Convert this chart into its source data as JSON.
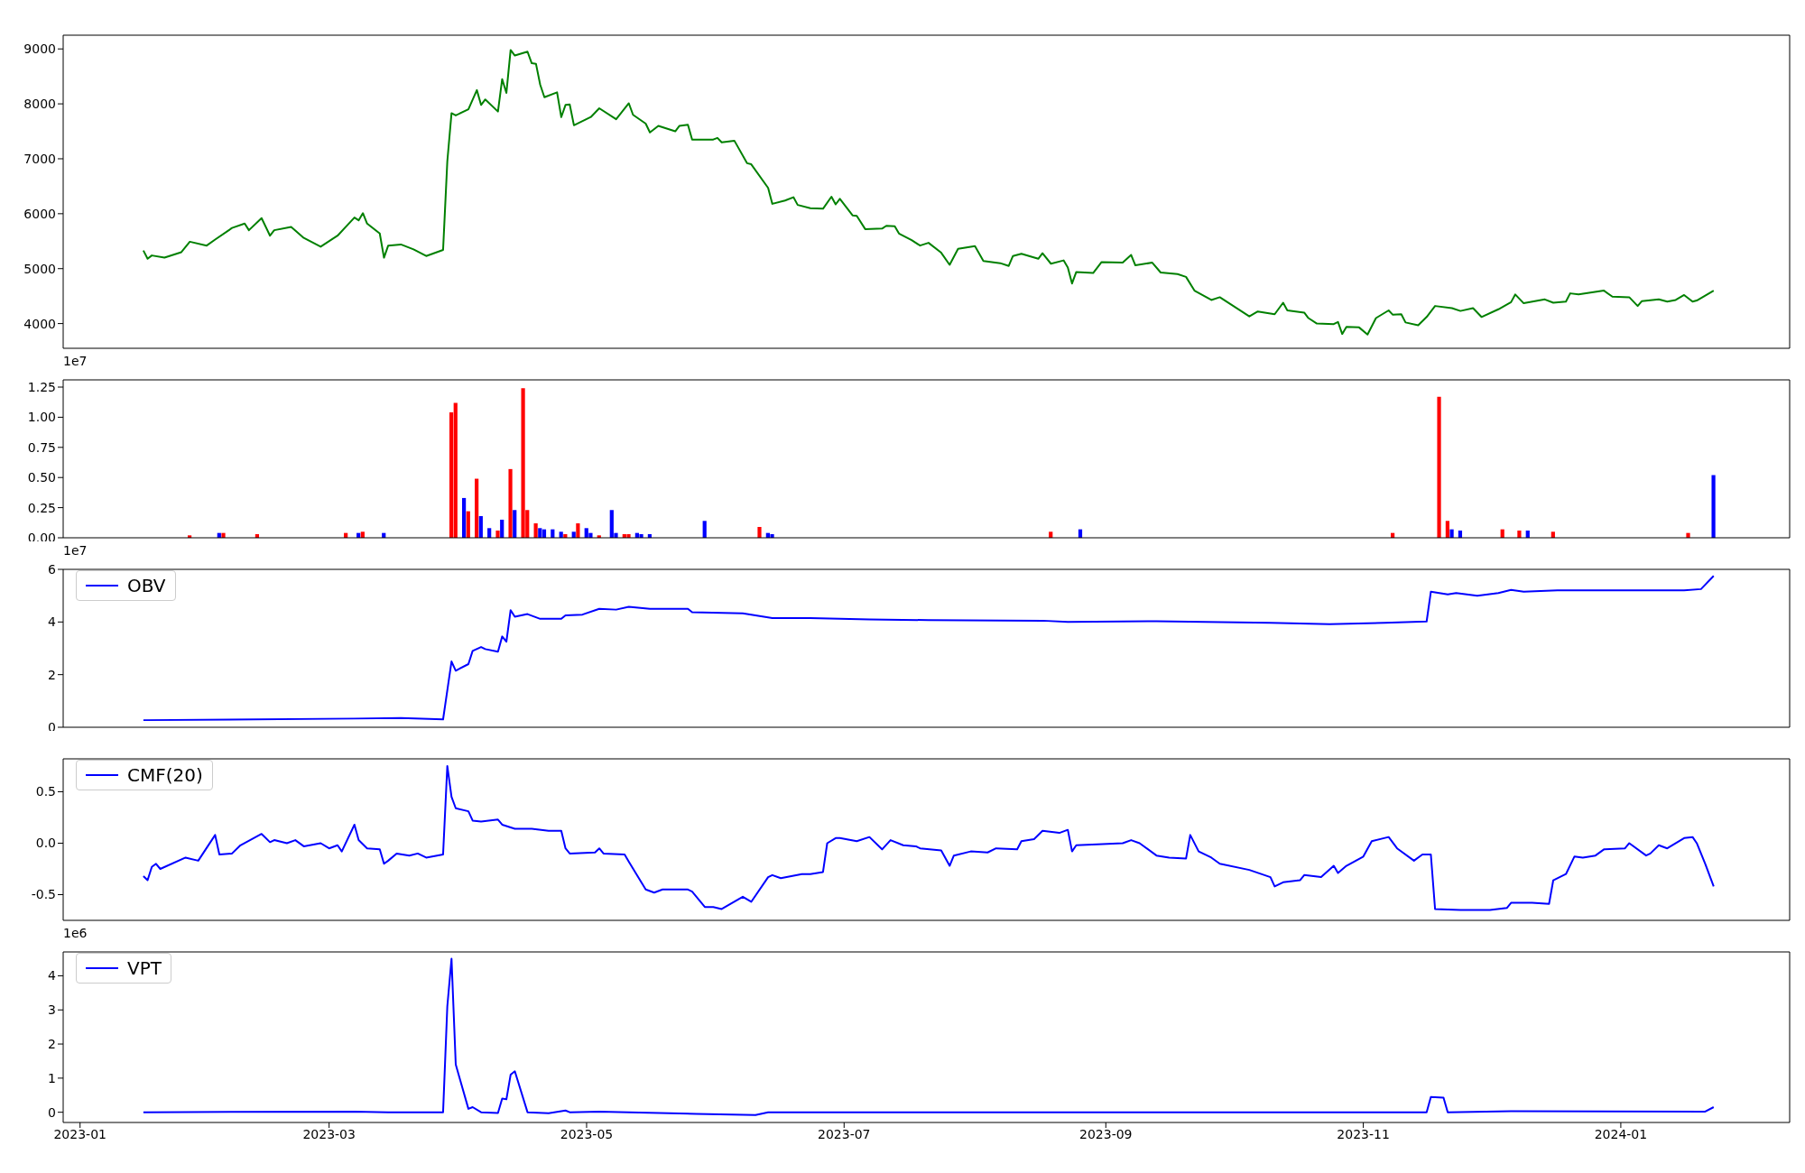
{
  "chart_data": [
    {
      "type": "line",
      "x": [
        "2023-01-16",
        "2023-01-17",
        "2023-01-18",
        "2023-01-21",
        "2023-01-25",
        "2023-01-27",
        "2023-01-31",
        "2023-02-02",
        "2023-02-06",
        "2023-02-09",
        "2023-02-10",
        "2023-02-13",
        "2023-02-15",
        "2023-02-16",
        "2023-02-20",
        "2023-02-23",
        "2023-02-27",
        "2023-03-03",
        "2023-03-07",
        "2023-03-08",
        "2023-03-09",
        "2023-03-10",
        "2023-03-13",
        "2023-03-14",
        "2023-03-15",
        "2023-03-18",
        "2023-03-21",
        "2023-03-24",
        "2023-03-28",
        "2023-03-29",
        "2023-03-30",
        "2023-03-31",
        "2023-04-03",
        "2023-04-05",
        "2023-04-06",
        "2023-04-07",
        "2023-04-10",
        "2023-04-11",
        "2023-04-12",
        "2023-04-13",
        "2023-04-14",
        "2023-04-17",
        "2023-04-18",
        "2023-04-19",
        "2023-04-20",
        "2023-04-21",
        "2023-04-24",
        "2023-04-25",
        "2023-04-26",
        "2023-04-27",
        "2023-04-28",
        "2023-05-02",
        "2023-05-04",
        "2023-05-08",
        "2023-05-11",
        "2023-05-12",
        "2023-05-15",
        "2023-05-16",
        "2023-05-18",
        "2023-05-22",
        "2023-05-23",
        "2023-05-25",
        "2023-05-26",
        "2023-05-31",
        "2023-06-01",
        "2023-06-02",
        "2023-06-05",
        "2023-06-08",
        "2023-06-09",
        "2023-06-13",
        "2023-06-14",
        "2023-06-17",
        "2023-06-19",
        "2023-06-20",
        "2023-06-23",
        "2023-06-26",
        "2023-06-28",
        "2023-06-29",
        "2023-06-30",
        "2023-07-03",
        "2023-07-04",
        "2023-07-06",
        "2023-07-10",
        "2023-07-11",
        "2023-07-13",
        "2023-07-14",
        "2023-07-17",
        "2023-07-19",
        "2023-07-21",
        "2023-07-24",
        "2023-07-26",
        "2023-07-28",
        "2023-08-01",
        "2023-08-03",
        "2023-08-07",
        "2023-08-09",
        "2023-08-10",
        "2023-08-12",
        "2023-08-16",
        "2023-08-17",
        "2023-08-19",
        "2023-08-22",
        "2023-08-23",
        "2023-08-24",
        "2023-08-25",
        "2023-08-29",
        "2023-08-31",
        "2023-09-05",
        "2023-09-07",
        "2023-09-08",
        "2023-09-12",
        "2023-09-14",
        "2023-09-18",
        "2023-09-20",
        "2023-09-22",
        "2023-09-26",
        "2023-09-28",
        "2023-10-05",
        "2023-10-07",
        "2023-10-11",
        "2023-10-13",
        "2023-10-14",
        "2023-10-18",
        "2023-10-19",
        "2023-10-21",
        "2023-10-25",
        "2023-10-26",
        "2023-10-27",
        "2023-10-28",
        "2023-10-31",
        "2023-11-02",
        "2023-11-04",
        "2023-11-07",
        "2023-11-08",
        "2023-11-10",
        "2023-11-11",
        "2023-11-14",
        "2023-11-16",
        "2023-11-18",
        "2023-11-22",
        "2023-11-24",
        "2023-11-27",
        "2023-11-29",
        "2023-12-03",
        "2023-12-06",
        "2023-12-07",
        "2023-12-09",
        "2023-12-14",
        "2023-12-16",
        "2023-12-19",
        "2023-12-20",
        "2023-12-22",
        "2023-12-28",
        "2023-12-30",
        "2024-01-03",
        "2024-01-05",
        "2024-01-06",
        "2024-01-10",
        "2024-01-12",
        "2024-01-14",
        "2024-01-16",
        "2024-01-18",
        "2024-01-19",
        "2024-01-23"
      ],
      "series": [
        {
          "color": "#008000",
          "values": [
            5330,
            5180,
            5240,
            5200,
            5300,
            5490,
            5420,
            5530,
            5740,
            5820,
            5700,
            5920,
            5600,
            5700,
            5760,
            5560,
            5400,
            5600,
            5930,
            5880,
            6010,
            5820,
            5640,
            5200,
            5420,
            5440,
            5350,
            5230,
            5340,
            6950,
            7830,
            7790,
            7900,
            8250,
            7980,
            8080,
            7860,
            8450,
            8200,
            8980,
            8880,
            8950,
            8740,
            8730,
            8350,
            8120,
            8210,
            7760,
            7980,
            7990,
            7610,
            7760,
            7920,
            7720,
            8010,
            7800,
            7640,
            7480,
            7600,
            7500,
            7600,
            7620,
            7350,
            7350,
            7380,
            7300,
            7330,
            6920,
            6900,
            6470,
            6180,
            6240,
            6300,
            6160,
            6100,
            6090,
            6310,
            6170,
            6270,
            5970,
            5960,
            5720,
            5730,
            5780,
            5770,
            5640,
            5520,
            5420,
            5470,
            5290,
            5070,
            5360,
            5410,
            5140,
            5100,
            5050,
            5230,
            5270,
            5180,
            5280,
            5090,
            5150,
            5020,
            4730,
            4940,
            4920,
            5120,
            5110,
            5250,
            5060,
            5110,
            4930,
            4900,
            4850,
            4600,
            4430,
            4480,
            4130,
            4220,
            4170,
            4380,
            4240,
            4200,
            4100,
            4000,
            3990,
            4030,
            3810,
            3940,
            3930,
            3800,
            4100,
            4240,
            4160,
            4170,
            4020,
            3970,
            4120,
            4320,
            4280,
            4230,
            4280,
            4120,
            4260,
            4390,
            4530,
            4370,
            4440,
            4380,
            4400,
            4550,
            4530,
            4600,
            4490,
            4480,
            4320,
            4410,
            4440,
            4400,
            4430,
            4520,
            4400,
            4420,
            4600
          ]
        }
      ],
      "xlim": [
        "2022-12-28",
        "2024-02-10"
      ],
      "xticks": [
        "2023-01",
        "2023-03",
        "2023-05",
        "2023-07",
        "2023-09",
        "2023-11",
        "2024-01"
      ],
      "ylim": [
        3550,
        9250
      ],
      "yticks": [
        4000,
        5000,
        6000,
        7000,
        8000,
        9000
      ],
      "tick_labels": "y"
    },
    {
      "type": "bar",
      "annotations": [
        "1e7"
      ],
      "x": [
        "2023-01-27",
        "2023-02-03",
        "2023-02-04",
        "2023-02-12",
        "2023-03-05",
        "2023-03-08",
        "2023-03-09",
        "2023-03-14",
        "2023-03-30",
        "2023-03-31",
        "2023-04-02",
        "2023-04-03",
        "2023-04-05",
        "2023-04-06",
        "2023-04-08",
        "2023-04-10",
        "2023-04-11",
        "2023-04-13",
        "2023-04-14",
        "2023-04-16",
        "2023-04-17",
        "2023-04-19",
        "2023-04-20",
        "2023-04-21",
        "2023-04-23",
        "2023-04-25",
        "2023-04-26",
        "2023-04-28",
        "2023-04-29",
        "2023-05-01",
        "2023-05-02",
        "2023-05-04",
        "2023-05-07",
        "2023-05-08",
        "2023-05-10",
        "2023-05-11",
        "2023-05-13",
        "2023-05-14",
        "2023-05-16",
        "2023-05-29",
        "2023-06-11",
        "2023-06-13",
        "2023-06-14",
        "2023-08-19",
        "2023-08-26",
        "2023-11-08",
        "2023-11-19",
        "2023-11-21",
        "2023-11-22",
        "2023-11-24",
        "2023-12-04",
        "2023-12-08",
        "2023-12-10",
        "2023-12-16",
        "2024-01-17",
        "2024-01-23"
      ],
      "values": [
        0.02,
        0.04,
        0.04,
        0.03,
        0.04,
        0.04,
        0.05,
        0.04,
        1.04,
        1.12,
        0.33,
        0.22,
        0.49,
        0.18,
        0.08,
        0.06,
        0.15,
        0.57,
        0.23,
        1.24,
        0.23,
        0.12,
        0.08,
        0.07,
        0.07,
        0.05,
        0.03,
        0.05,
        0.12,
        0.08,
        0.04,
        0.02,
        0.23,
        0.04,
        0.03,
        0.03,
        0.04,
        0.03,
        0.03,
        0.14,
        0.09,
        0.04,
        0.03,
        0.05,
        0.07,
        0.04,
        1.17,
        0.14,
        0.07,
        0.06,
        0.07,
        0.06,
        0.06,
        0.05,
        0.04,
        0.52
      ],
      "colors": [
        "#ff0000",
        "#0000ff",
        "#ff0000",
        "#ff0000",
        "#ff0000",
        "#0000ff",
        "#ff0000",
        "#0000ff",
        "#ff0000",
        "#ff0000",
        "#0000ff",
        "#ff0000",
        "#ff0000",
        "#0000ff",
        "#0000ff",
        "#ff0000",
        "#0000ff",
        "#ff0000",
        "#0000ff",
        "#ff0000",
        "#ff0000",
        "#ff0000",
        "#0000ff",
        "#0000ff",
        "#0000ff",
        "#0000ff",
        "#ff0000",
        "#0000ff",
        "#ff0000",
        "#0000ff",
        "#0000ff",
        "#ff0000",
        "#0000ff",
        "#0000ff",
        "#ff0000",
        "#ff0000",
        "#0000ff",
        "#0000ff",
        "#0000ff",
        "#0000ff",
        "#ff0000",
        "#0000ff",
        "#0000ff",
        "#ff0000",
        "#0000ff",
        "#ff0000",
        "#ff0000",
        "#ff0000",
        "#0000ff",
        "#0000ff",
        "#ff0000",
        "#ff0000",
        "#0000ff",
        "#ff0000",
        "#ff0000",
        "#0000ff"
      ],
      "xlim": [
        "2022-12-28",
        "2024-02-10"
      ],
      "xticks": [
        "2023-01",
        "2023-03",
        "2023-05",
        "2023-07",
        "2023-09",
        "2023-11",
        "2024-01"
      ],
      "ylim": [
        0,
        1.31
      ],
      "yticks": [
        {
          "value": 0,
          "label": "0.00"
        },
        {
          "value": 0.25,
          "label": "0.25"
        },
        {
          "value": 0.5,
          "label": "0.50"
        },
        {
          "value": 0.75,
          "label": "0.75"
        },
        {
          "value": 1,
          "label": "1.00"
        },
        {
          "value": 1.25,
          "label": "1.25"
        }
      ],
      "tick_labels": "y"
    },
    {
      "type": "line",
      "annotations": [
        "1e7"
      ],
      "legend": "top left",
      "x": [
        "2023-01-16",
        "2023-03-07",
        "2023-03-18",
        "2023-03-28",
        "2023-03-30",
        "2023-03-31",
        "2023-04-03",
        "2023-04-04",
        "2023-04-06",
        "2023-04-07",
        "2023-04-10",
        "2023-04-11",
        "2023-04-12",
        "2023-04-13",
        "2023-04-14",
        "2023-04-17",
        "2023-04-20",
        "2023-04-25",
        "2023-04-26",
        "2023-04-30",
        "2023-05-04",
        "2023-05-08",
        "2023-05-11",
        "2023-05-16",
        "2023-05-25",
        "2023-05-26",
        "2023-06-07",
        "2023-06-14",
        "2023-06-23",
        "2023-07-07",
        "2023-07-21",
        "2023-08-17",
        "2023-08-23",
        "2023-09-13",
        "2023-10-10",
        "2023-10-24",
        "2023-11-06",
        "2023-11-16",
        "2023-11-17",
        "2023-11-21",
        "2023-11-23",
        "2023-11-28",
        "2023-12-03",
        "2023-12-06",
        "2023-12-09",
        "2023-12-17",
        "2023-12-30",
        "2024-01-16",
        "2024-01-20",
        "2024-01-23"
      ],
      "series": [
        {
          "name": "OBV",
          "color": "#0000ff",
          "values": [
            0.27,
            0.33,
            0.35,
            0.3,
            2.5,
            2.15,
            2.4,
            2.9,
            3.05,
            2.97,
            2.87,
            3.45,
            3.25,
            4.45,
            4.2,
            4.3,
            4.12,
            4.12,
            4.25,
            4.28,
            4.5,
            4.47,
            4.58,
            4.5,
            4.5,
            4.37,
            4.33,
            4.15,
            4.15,
            4.1,
            4.07,
            4.05,
            4.0,
            4.03,
            3.97,
            3.92,
            3.97,
            4.02,
            5.15,
            5.05,
            5.1,
            5.0,
            5.1,
            5.22,
            5.15,
            5.2,
            5.2,
            5.2,
            5.25,
            5.75
          ]
        }
      ],
      "xlim": [
        "2022-12-28",
        "2024-02-10"
      ],
      "xticks": [
        "2023-01",
        "2023-03",
        "2023-05",
        "2023-07",
        "2023-09",
        "2023-11",
        "2024-01"
      ],
      "ylim": [
        0,
        6
      ],
      "yticks": [
        0,
        2,
        4,
        6
      ],
      "tick_labels": "y"
    },
    {
      "type": "line",
      "legend": "top left",
      "x": [
        "2023-01-16",
        "2023-01-17",
        "2023-01-18",
        "2023-01-19",
        "2023-01-20",
        "2023-01-26",
        "2023-01-29",
        "2023-02-02",
        "2023-02-03",
        "2023-02-06",
        "2023-02-08",
        "2023-02-13",
        "2023-02-15",
        "2023-02-16",
        "2023-02-19",
        "2023-02-21",
        "2023-02-23",
        "2023-02-27",
        "2023-03-01",
        "2023-03-03",
        "2023-03-04",
        "2023-03-07",
        "2023-03-08",
        "2023-03-10",
        "2023-03-13",
        "2023-03-14",
        "2023-03-15",
        "2023-03-17",
        "2023-03-20",
        "2023-03-22",
        "2023-03-24",
        "2023-03-28",
        "2023-03-29",
        "2023-03-30",
        "2023-03-31",
        "2023-04-03",
        "2023-04-04",
        "2023-04-06",
        "2023-04-10",
        "2023-04-11",
        "2023-04-14",
        "2023-04-18",
        "2023-04-22",
        "2023-04-25",
        "2023-04-26",
        "2023-04-27",
        "2023-05-03",
        "2023-05-04",
        "2023-05-05",
        "2023-05-10",
        "2023-05-11",
        "2023-05-15",
        "2023-05-17",
        "2023-05-19",
        "2023-05-25",
        "2023-05-26",
        "2023-05-29",
        "2023-05-31",
        "2023-06-02",
        "2023-06-07",
        "2023-06-09",
        "2023-06-13",
        "2023-06-14",
        "2023-06-16",
        "2023-06-21",
        "2023-06-23",
        "2023-06-26",
        "2023-06-27",
        "2023-06-29",
        "2023-06-30",
        "2023-07-04",
        "2023-07-07",
        "2023-07-10",
        "2023-07-12",
        "2023-07-15",
        "2023-07-18",
        "2023-07-19",
        "2023-07-24",
        "2023-07-26",
        "2023-07-27",
        "2023-07-31",
        "2023-08-04",
        "2023-08-06",
        "2023-08-11",
        "2023-08-12",
        "2023-08-15",
        "2023-08-17",
        "2023-08-21",
        "2023-08-23",
        "2023-08-24",
        "2023-08-25",
        "2023-08-30",
        "2023-09-05",
        "2023-09-07",
        "2023-09-09",
        "2023-09-13",
        "2023-09-16",
        "2023-09-20",
        "2023-09-21",
        "2023-09-23",
        "2023-09-26",
        "2023-09-28",
        "2023-10-05",
        "2023-10-10",
        "2023-10-11",
        "2023-10-13",
        "2023-10-17",
        "2023-10-18",
        "2023-10-22",
        "2023-10-25",
        "2023-10-26",
        "2023-10-28",
        "2023-11-01",
        "2023-11-03",
        "2023-11-07",
        "2023-11-09",
        "2023-11-13",
        "2023-11-15",
        "2023-11-17",
        "2023-11-18",
        "2023-11-24",
        "2023-12-01",
        "2023-12-05",
        "2023-12-06",
        "2023-12-11",
        "2023-12-15",
        "2023-12-16",
        "2023-12-19",
        "2023-12-21",
        "2023-12-23",
        "2023-12-26",
        "2023-12-28",
        "2024-01-02",
        "2024-01-03",
        "2024-01-07",
        "2024-01-08",
        "2024-01-10",
        "2024-01-12",
        "2024-01-16",
        "2024-01-18",
        "2024-01-19",
        "2024-01-21",
        "2024-01-23"
      ],
      "series": [
        {
          "name": "CMF(20)",
          "color": "#0000ff",
          "values": [
            -0.32,
            -0.36,
            -0.23,
            -0.2,
            -0.25,
            -0.14,
            -0.17,
            0.08,
            -0.11,
            -0.1,
            -0.02,
            0.09,
            0.01,
            0.03,
            0.0,
            0.03,
            -0.03,
            0.0,
            -0.05,
            -0.02,
            -0.08,
            0.18,
            0.03,
            -0.05,
            -0.06,
            -0.2,
            -0.17,
            -0.1,
            -0.12,
            -0.1,
            -0.14,
            -0.11,
            0.75,
            0.45,
            0.34,
            0.31,
            0.22,
            0.21,
            0.23,
            0.18,
            0.14,
            0.14,
            0.12,
            0.12,
            -0.05,
            -0.1,
            -0.09,
            -0.05,
            -0.1,
            -0.11,
            -0.18,
            -0.45,
            -0.48,
            -0.45,
            -0.45,
            -0.47,
            -0.62,
            -0.62,
            -0.64,
            -0.52,
            -0.57,
            -0.33,
            -0.31,
            -0.34,
            -0.3,
            -0.3,
            -0.28,
            0.0,
            0.05,
            0.05,
            0.02,
            0.06,
            -0.06,
            0.03,
            -0.02,
            -0.03,
            -0.05,
            -0.07,
            -0.22,
            -0.12,
            -0.08,
            -0.09,
            -0.05,
            -0.06,
            0.02,
            0.04,
            0.12,
            0.1,
            0.13,
            -0.08,
            -0.02,
            -0.01,
            0.0,
            0.03,
            0.0,
            -0.12,
            -0.14,
            -0.15,
            0.08,
            -0.08,
            -0.14,
            -0.2,
            -0.26,
            -0.33,
            -0.42,
            -0.38,
            -0.36,
            -0.31,
            -0.33,
            -0.22,
            -0.29,
            -0.22,
            -0.13,
            0.02,
            0.06,
            -0.05,
            -0.17,
            -0.11,
            -0.11,
            -0.64,
            -0.65,
            -0.65,
            -0.63,
            -0.58,
            -0.58,
            -0.59,
            -0.36,
            -0.3,
            -0.13,
            -0.14,
            -0.12,
            -0.06,
            -0.05,
            0.0,
            -0.12,
            -0.1,
            -0.02,
            -0.05,
            0.05,
            0.06,
            0.0,
            -0.2,
            -0.42
          ]
        }
      ],
      "xlim": [
        "2022-12-28",
        "2024-02-10"
      ],
      "xticks": [
        "2023-01",
        "2023-03",
        "2023-05",
        "2023-07",
        "2023-09",
        "2023-11",
        "2024-01"
      ],
      "ylim": [
        -0.75,
        0.82
      ],
      "yticks": [
        -0.5,
        {
          "value": 0,
          "label": "0.0"
        },
        0.5
      ],
      "tick_labels": "y"
    },
    {
      "type": "line",
      "annotations": [
        "1e6"
      ],
      "legend": "top left",
      "x": [
        "2023-01-16",
        "2023-03-07",
        "2023-03-15",
        "2023-03-28",
        "2023-03-29",
        "2023-03-30",
        "2023-03-31",
        "2023-04-03",
        "2023-04-04",
        "2023-04-06",
        "2023-04-10",
        "2023-04-11",
        "2023-04-12",
        "2023-04-13",
        "2023-04-14",
        "2023-04-17",
        "2023-04-22",
        "2023-04-26",
        "2023-04-27",
        "2023-05-04",
        "2023-05-11",
        "2023-05-27",
        "2023-06-10",
        "2023-06-13",
        "2023-11-06",
        "2023-11-16",
        "2023-11-17",
        "2023-11-20",
        "2023-11-21",
        "2023-12-06",
        "2024-01-21",
        "2024-01-23"
      ],
      "series": [
        {
          "name": "VPT",
          "color": "#0000ff",
          "values": [
            0,
            0.02,
            0.0,
            0.0,
            3.1,
            4.5,
            1.4,
            0.1,
            0.15,
            0.0,
            -0.02,
            0.4,
            0.38,
            1.1,
            1.2,
            0.0,
            -0.03,
            0.05,
            0.0,
            0.02,
            0.0,
            -0.05,
            -0.08,
            0.0,
            0.0,
            0.0,
            0.45,
            0.43,
            0.0,
            0.03,
            0.02,
            0.15
          ]
        }
      ],
      "xlim": [
        "2022-12-28",
        "2024-02-10"
      ],
      "xticks": [
        "2023-01",
        "2023-03",
        "2023-05",
        "2023-07",
        "2023-09",
        "2023-11",
        "2024-01"
      ],
      "ylim": [
        -0.3,
        4.7
      ],
      "yticks": [
        0,
        1,
        2,
        3,
        4
      ]
    }
  ]
}
